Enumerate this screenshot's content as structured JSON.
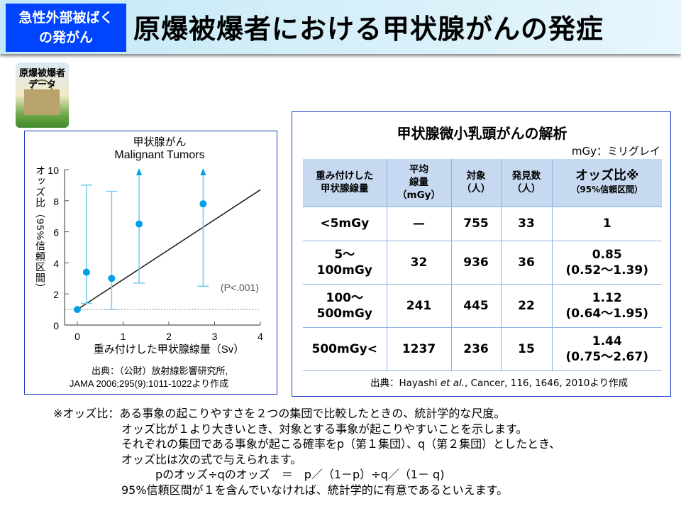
{
  "header": {
    "tag": "急性外部被ばく\nの発がん",
    "tag_line1": "急性外部被ばく",
    "tag_line2": "の発がん",
    "title": "原爆被爆者における甲状腺がんの発症"
  },
  "logo": {
    "line1": "原爆被爆者",
    "line2": "データ"
  },
  "chart_data": {
    "type": "scatter",
    "title": "甲状腺がん",
    "subtitle": "Malignant Tumors",
    "xlabel": "重み付けした甲状腺線量（Sv）",
    "ylabel": "オッズ比（95%信頼区間）",
    "xlim": [
      -0.3,
      4
    ],
    "ylim": [
      0,
      10
    ],
    "xticks": [
      "0",
      "1",
      "2",
      "3",
      "4"
    ],
    "yticks": [
      "0",
      "2",
      "4",
      "6",
      "8",
      "10"
    ],
    "points": [
      {
        "x": 0,
        "y": 1.0
      },
      {
        "x": 0.2,
        "y": 3.4,
        "ci": [
          1.4,
          9.0
        ]
      },
      {
        "x": 0.75,
        "y": 3.0,
        "ci": [
          1.0,
          8.6
        ]
      },
      {
        "x": 1.35,
        "y": 6.5,
        "ci": [
          2.7,
          10
        ],
        "ci_upper_open": true
      },
      {
        "x": 2.75,
        "y": 7.8,
        "ci": [
          2.5,
          10
        ],
        "ci_upper_open": true
      }
    ],
    "trend_line": [
      {
        "x": 0,
        "y": 1.0
      },
      {
        "x": 4,
        "y": 8.7
      }
    ],
    "reference_line": 1,
    "annotation": "(P<.001)",
    "point_color": "#00a0e9",
    "ci_color": "#6fcdf0"
  },
  "chart_source": {
    "line1": "出典：（公財）放射線影響研究所,",
    "line2": "JAMA 2006;295(9):1011-1022より作成"
  },
  "table": {
    "title": "甲状腺微小乳頭がんの解析",
    "unit": "mGy：ミリグレイ",
    "headers": [
      [
        "重み付けした",
        "甲状腺線量"
      ],
      [
        "平均",
        "線量",
        "（mGy）"
      ],
      [
        "対象",
        "（人）"
      ],
      [
        "発見数",
        "（人）"
      ],
      [
        "オッズ比※",
        "（95%信頼区間）"
      ]
    ],
    "rows": [
      {
        "dose": [
          "<5mGy"
        ],
        "mean": "—",
        "subjects": "755",
        "found": "33",
        "or": "1",
        "ci": ""
      },
      {
        "dose": [
          "5～",
          "100mGy"
        ],
        "mean": "32",
        "subjects": "936",
        "found": "36",
        "or": "0.85",
        "ci": "(0.52～1.39)"
      },
      {
        "dose": [
          "100～",
          "500mGy"
        ],
        "mean": "241",
        "subjects": "445",
        "found": "22",
        "or": "1.12",
        "ci": "(0.64～1.95)"
      },
      {
        "dose": [
          "500mGy<"
        ],
        "mean": "1237",
        "subjects": "236",
        "found": "15",
        "or": "1.44",
        "ci": "(0.75～2.67)"
      }
    ],
    "source_pre": "出典：Hayashi ",
    "source_em": "et al.",
    "source_post": ",  Cancer, 116, 1646, 2010より作成"
  },
  "note": {
    "lines": [
      "※オッズ比：ある事象の起こりやすさを２つの集団で比較したときの、統計学的な尺度。",
      "　　　　　　オッズ比が１より大きいとき、対象とする事象が起こりやすいことを示します。",
      "　　　　　　それぞれの集団である事象が起こる確率をp（第１集団）、q（第２集団）としたとき、",
      "　　　　　　オッズ比は次の式で与えられます。",
      "　　　　　　　　　pのオッズ÷qのオッズ　＝　p／（1－p）÷q／（1－ q)",
      "　　　　　　95%信頼区間が１を含んでいなければ、統計学的に有意であるといえます。"
    ]
  }
}
